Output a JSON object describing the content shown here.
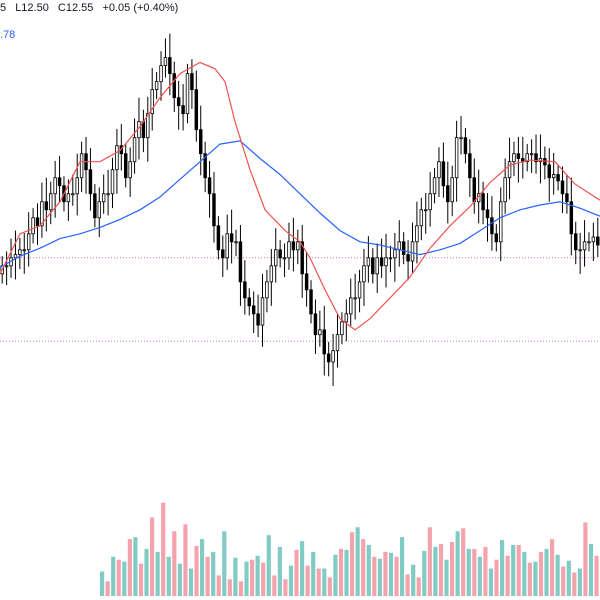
{
  "legend": {
    "ohlc_partial": "5",
    "low": "L12.50",
    "close": "C12.55",
    "change": "+0.05 (+0.40%)"
  },
  "ma_legend": {
    "value_partial": ".78"
  },
  "chart_data": {
    "type": "candlestick",
    "title": "",
    "xlabel": "",
    "ylabel": "",
    "grid": false,
    "colors": {
      "up_candle": "#000000",
      "down_candle": "#000000",
      "ma_fast": "#ef5350",
      "ma_slow": "#2962ff",
      "volume_up": "#80cbc4",
      "volume_down": "#f4a3ad",
      "ref_line": "#b05fb0"
    },
    "price_ylim": [
      12.0,
      14.56
    ],
    "volume_ylim": [
      0,
      159
    ],
    "reference_lines": [
      13.2,
      12.68
    ],
    "ma_fast": [
      [
        0,
        13.1
      ],
      [
        20,
        13.35
      ],
      [
        40,
        13.4
      ],
      [
        60,
        13.55
      ],
      [
        80,
        13.8
      ],
      [
        100,
        13.8
      ],
      [
        120,
        13.87
      ],
      [
        140,
        14.02
      ],
      [
        160,
        14.2
      ],
      [
        180,
        14.35
      ],
      [
        200,
        14.42
      ],
      [
        215,
        14.38
      ],
      [
        225,
        14.3
      ],
      [
        235,
        14.05
      ],
      [
        250,
        13.75
      ],
      [
        265,
        13.5
      ],
      [
        285,
        13.37
      ],
      [
        300,
        13.3
      ],
      [
        310,
        13.2
      ],
      [
        325,
        13.0
      ],
      [
        340,
        12.82
      ],
      [
        355,
        12.75
      ],
      [
        370,
        12.82
      ],
      [
        390,
        12.95
      ],
      [
        410,
        13.08
      ],
      [
        430,
        13.26
      ],
      [
        450,
        13.4
      ],
      [
        470,
        13.52
      ],
      [
        490,
        13.67
      ],
      [
        510,
        13.78
      ],
      [
        530,
        13.81
      ],
      [
        555,
        13.8
      ],
      [
        575,
        13.66
      ],
      [
        600,
        13.56
      ]
    ],
    "ma_slow": [
      [
        0,
        13.14
      ],
      [
        20,
        13.21
      ],
      [
        40,
        13.26
      ],
      [
        60,
        13.32
      ],
      [
        80,
        13.35
      ],
      [
        100,
        13.39
      ],
      [
        120,
        13.44
      ],
      [
        140,
        13.5
      ],
      [
        160,
        13.58
      ],
      [
        180,
        13.69
      ],
      [
        200,
        13.8
      ],
      [
        220,
        13.91
      ],
      [
        240,
        13.93
      ],
      [
        260,
        13.82
      ],
      [
        280,
        13.72
      ],
      [
        300,
        13.6
      ],
      [
        320,
        13.48
      ],
      [
        340,
        13.37
      ],
      [
        360,
        13.3
      ],
      [
        380,
        13.28
      ],
      [
        400,
        13.25
      ],
      [
        420,
        13.22
      ],
      [
        440,
        13.25
      ],
      [
        460,
        13.29
      ],
      [
        480,
        13.37
      ],
      [
        500,
        13.45
      ],
      [
        520,
        13.5
      ],
      [
        540,
        13.53
      ],
      [
        560,
        13.55
      ],
      [
        580,
        13.51
      ],
      [
        600,
        13.46
      ]
    ],
    "candles": [
      [
        13.15,
        13.15,
        13.2,
        13.22,
        13.25,
        13.25,
        13.35,
        13.45
      ],
      [
        13.4,
        13.55,
        13.5,
        13.6,
        13.7,
        13.65,
        13.55,
        13.6
      ],
      [
        13.6,
        13.7,
        13.85,
        13.75,
        13.6,
        13.45,
        13.55,
        13.6
      ],
      [
        13.6,
        13.75,
        13.9,
        13.85,
        13.7,
        13.8,
        13.95,
        14.05
      ],
      [
        13.95,
        14.1,
        14.25,
        14.3,
        14.4,
        14.45,
        14.35,
        14.2
      ],
      [
        14.15,
        14.1,
        14.35,
        14.25,
        14.0,
        13.85,
        13.7,
        13.6
      ],
      [
        13.4,
        13.25,
        13.2,
        13.35,
        13.3,
        13.3,
        13.05,
        12.95
      ],
      [
        12.9,
        12.85,
        12.78,
        12.95,
        13.05,
        13.15,
        13.25,
        13.2
      ],
      [
        13.2,
        13.3,
        13.25,
        13.3,
        13.1,
        13.0,
        12.85,
        12.72
      ],
      [
        12.75,
        12.6,
        12.55,
        12.62,
        12.72,
        12.8,
        12.85,
        12.95
      ],
      [
        12.95,
        13.05,
        13.15,
        13.2,
        13.1,
        13.2,
        13.15,
        13.2
      ],
      [
        13.2,
        13.25,
        13.3,
        13.22,
        13.18,
        13.3,
        13.4,
        13.5
      ],
      [
        13.5,
        13.6,
        13.7,
        13.8,
        13.65,
        13.55,
        13.7,
        13.95
      ],
      [
        13.95,
        13.85,
        13.7,
        13.55,
        13.6,
        13.5,
        13.45,
        13.35
      ],
      [
        13.3,
        13.55,
        13.7,
        13.8,
        13.85,
        13.82,
        13.8,
        13.85
      ],
      [
        13.85,
        13.8,
        13.82,
        13.78,
        13.7,
        13.72,
        13.68,
        13.6
      ],
      [
        13.55,
        13.35,
        13.25,
        13.25,
        13.3,
        13.3,
        13.33,
        13.28
      ]
    ],
    "volume_up": [
      25,
      40,
      35,
      60,
      48,
      45,
      40,
      33,
      28,
      58,
      45,
      66,
      39,
      35,
      41,
      62,
      50,
      31,
      56,
      45,
      28,
      42,
      47,
      70,
      52,
      38,
      44,
      60,
      32,
      46,
      50,
      37,
      66,
      48,
      40,
      28,
      57,
      52,
      45,
      35,
      48,
      42,
      36,
      28,
      53
    ],
    "volume_down": [
      15,
      37,
      58,
      33,
      80,
      95,
      66,
      73,
      51,
      40,
      21,
      17,
      15,
      37,
      34,
      21,
      17,
      47,
      31,
      28,
      19,
      48,
      65,
      58,
      40,
      45,
      40,
      22,
      19,
      70,
      53,
      55,
      69,
      48,
      50,
      37,
      41,
      52,
      34,
      45,
      58,
      30,
      24,
      75,
      41
    ]
  }
}
